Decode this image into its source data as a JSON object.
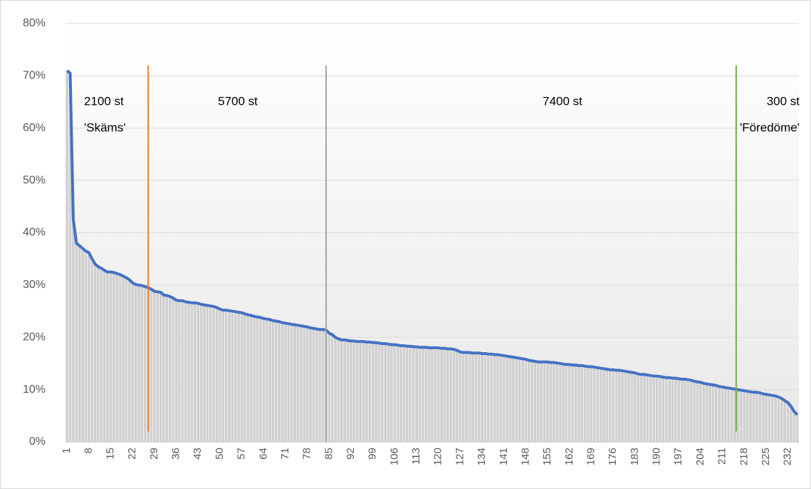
{
  "chart_data": {
    "type": "bar-line",
    "color": "#4472c4",
    "bar_color": "#d0d0d0",
    "grid": true,
    "ylim": [
      0,
      80
    ],
    "yticks": [
      {
        "value": 0,
        "label": "0%"
      },
      {
        "value": 10,
        "label": "10%"
      },
      {
        "value": 20,
        "label": "20%"
      },
      {
        "value": 30,
        "label": "30%"
      },
      {
        "value": 40,
        "label": "40%"
      },
      {
        "value": 50,
        "label": "50%"
      },
      {
        "value": 60,
        "label": "60%"
      },
      {
        "value": 70,
        "label": "70%"
      },
      {
        "value": 80,
        "label": "80%"
      }
    ],
    "categories": [
      "1",
      null,
      null,
      null,
      null,
      null,
      null,
      "8",
      null,
      null,
      null,
      null,
      null,
      null,
      "15",
      null,
      null,
      null,
      null,
      null,
      null,
      "22",
      null,
      null,
      null,
      null,
      null,
      null,
      "29",
      null,
      null,
      null,
      null,
      null,
      null,
      "36",
      null,
      null,
      null,
      null,
      null,
      null,
      "43",
      null,
      null,
      null,
      null,
      null,
      null,
      "50",
      null,
      null,
      null,
      null,
      null,
      null,
      "57",
      null,
      null,
      null,
      null,
      null,
      null,
      "64",
      null,
      null,
      null,
      null,
      null,
      null,
      "71",
      null,
      null,
      null,
      null,
      null,
      null,
      "78",
      null,
      null,
      null,
      null,
      null,
      null,
      "85",
      null,
      null,
      null,
      null,
      null,
      null,
      "92",
      null,
      null,
      null,
      null,
      null,
      null,
      "99",
      null,
      null,
      null,
      null,
      null,
      null,
      "106",
      null,
      null,
      null,
      null,
      null,
      null,
      "113",
      null,
      null,
      null,
      null,
      null,
      null,
      "120",
      null,
      null,
      null,
      null,
      null,
      null,
      "127",
      null,
      null,
      null,
      null,
      null,
      null,
      "134",
      null,
      null,
      null,
      null,
      null,
      null,
      "141",
      null,
      null,
      null,
      null,
      null,
      null,
      "148",
      null,
      null,
      null,
      null,
      null,
      null,
      "155",
      null,
      null,
      null,
      null,
      null,
      null,
      "162",
      null,
      null,
      null,
      null,
      null,
      null,
      "169",
      null,
      null,
      null,
      null,
      null,
      null,
      "176",
      null,
      null,
      null,
      null,
      null,
      null,
      "183",
      null,
      null,
      null,
      null,
      null,
      null,
      "190",
      null,
      null,
      null,
      null,
      null,
      null,
      "197",
      null,
      null,
      null,
      null,
      null,
      null,
      "204",
      null,
      null,
      null,
      null,
      null,
      null,
      "211",
      null,
      null,
      null,
      null,
      null,
      null,
      "218",
      null,
      null,
      null,
      null,
      null,
      null,
      "225",
      null,
      null,
      null,
      null,
      null,
      null,
      "232",
      null,
      null,
      null
    ],
    "values": [
      71,
      70.5,
      42.5,
      38,
      37.5,
      37,
      36.5,
      36.2,
      35,
      34,
      33.5,
      33.2,
      32.8,
      32.5,
      32.5,
      32.4,
      32.2,
      32,
      31.7,
      31.4,
      31,
      30.4,
      30.1,
      30,
      29.9,
      29.7,
      29.5,
      29.2,
      28.8,
      28.7,
      28.6,
      28.1,
      28,
      27.8,
      27.5,
      27.1,
      27,
      27,
      26.8,
      26.7,
      26.6,
      26.6,
      26.5,
      26.3,
      26.2,
      26.1,
      26,
      25.9,
      25.7,
      25.4,
      25.2,
      25.2,
      25.1,
      25,
      24.9,
      24.8,
      24.7,
      24.5,
      24.3,
      24.2,
      24,
      23.9,
      23.8,
      23.6,
      23.5,
      23.4,
      23.2,
      23.1,
      23,
      22.8,
      22.7,
      22.6,
      22.5,
      22.4,
      22.3,
      22.2,
      22.1,
      22,
      21.8,
      21.7,
      21.6,
      21.5,
      21.5,
      21.4,
      20.8,
      20.5,
      20,
      19.7,
      19.5,
      19.5,
      19.4,
      19.3,
      19.3,
      19.2,
      19.2,
      19.2,
      19.1,
      19.1,
      19,
      19,
      18.9,
      18.8,
      18.8,
      18.7,
      18.6,
      18.6,
      18.5,
      18.4,
      18.4,
      18.3,
      18.3,
      18.2,
      18.2,
      18.1,
      18.1,
      18.1,
      18,
      18,
      18,
      18,
      17.9,
      17.9,
      17.8,
      17.8,
      17.7,
      17.5,
      17.2,
      17.1,
      17.1,
      17.1,
      17,
      17,
      17,
      16.9,
      16.9,
      16.8,
      16.8,
      16.7,
      16.7,
      16.6,
      16.5,
      16.4,
      16.3,
      16.2,
      16.1,
      16,
      15.9,
      15.8,
      15.6,
      15.5,
      15.4,
      15.3,
      15.3,
      15.3,
      15.3,
      15.2,
      15.2,
      15.1,
      15,
      14.9,
      14.8,
      14.8,
      14.7,
      14.7,
      14.6,
      14.6,
      14.5,
      14.4,
      14.4,
      14.3,
      14.2,
      14.1,
      14,
      13.9,
      13.8,
      13.8,
      13.7,
      13.7,
      13.6,
      13.5,
      13.4,
      13.3,
      13.2,
      13,
      12.9,
      12.9,
      12.8,
      12.7,
      12.6,
      12.6,
      12.5,
      12.4,
      12.3,
      12.3,
      12.2,
      12.2,
      12.1,
      12,
      12,
      11.9,
      11.8,
      11.6,
      11.5,
      11.4,
      11.2,
      11.1,
      11,
      10.9,
      10.8,
      10.6,
      10.5,
      10.4,
      10.3,
      10.2,
      10.1,
      10,
      9.9,
      9.8,
      9.7,
      9.6,
      9.5,
      9.5,
      9.4,
      9.2,
      9.1,
      9,
      8.9,
      8.8,
      8.6,
      8.3,
      7.9,
      7.5,
      6.8,
      5.8,
      5.2
    ],
    "vlines": [
      {
        "x": 27,
        "color": "#ed7d31",
        "range": [
          2,
          72
        ]
      },
      {
        "x": 84,
        "color": "#a5a5a5",
        "range": [
          0,
          72
        ]
      },
      {
        "x": 215.4,
        "color": "#70ad47",
        "range": [
          2,
          72
        ]
      }
    ],
    "annotations": [
      {
        "lines": [
          "2100 st",
          "'Skäms'"
        ]
      },
      {
        "lines": [
          "5700 st"
        ]
      },
      {
        "lines": [
          "7400 st"
        ]
      },
      {
        "lines": [
          "300 st",
          "'Föredöme'"
        ]
      }
    ]
  }
}
